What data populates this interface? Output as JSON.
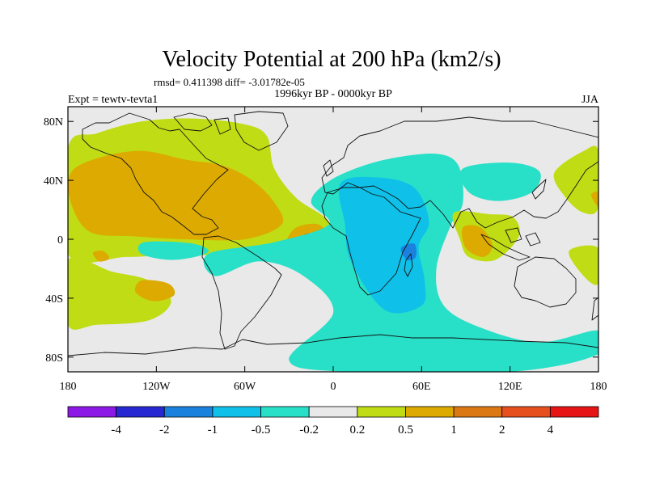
{
  "chart_data": {
    "type": "heatmap",
    "title": "Velocity Potential at 200 hPa (km2/s)",
    "stats": "rmsd= 0.411398 diff= -3.01782e-05",
    "left_label": "Expt = tewtv-tevta1",
    "center_label": "1996kyr BP - 0000kyr BP",
    "right_label": "JJA",
    "x_range": [
      -180,
      180
    ],
    "y_range": [
      -90,
      90
    ],
    "x_ticks": [
      {
        "value": -180,
        "label": "180"
      },
      {
        "value": -120,
        "label": "120W"
      },
      {
        "value": -60,
        "label": "60W"
      },
      {
        "value": 0,
        "label": "0"
      },
      {
        "value": 60,
        "label": "60E"
      },
      {
        "value": 120,
        "label": "120E"
      },
      {
        "value": 180,
        "label": "180"
      }
    ],
    "y_ticks": [
      {
        "value": 80,
        "label": "80N"
      },
      {
        "value": 40,
        "label": "40N"
      },
      {
        "value": 0,
        "label": "0"
      },
      {
        "value": -40,
        "label": "40S"
      },
      {
        "value": -80,
        "label": "80S"
      }
    ],
    "colorbar": {
      "levels": [
        -4,
        -2,
        -1,
        -0.5,
        -0.2,
        0.2,
        0.5,
        1,
        2,
        4
      ],
      "level_labels": [
        "-4",
        "-2",
        "-1",
        "-0.5",
        "-0.2",
        "0.2",
        "0.5",
        "1",
        "2",
        "4"
      ],
      "colors": [
        "#8c19e6",
        "#2828d2",
        "#1a82dc",
        "#0fc0e8",
        "#28e0c8",
        "#e9e9e9",
        "#c0dc14",
        "#dcaa00",
        "#dc7814",
        "#e6501e",
        "#e61414"
      ]
    },
    "regions": [
      {
        "name": "global-neutral",
        "level": 0,
        "points": [
          [
            -180,
            90
          ],
          [
            180,
            90
          ],
          [
            180,
            -90
          ],
          [
            -180,
            -90
          ]
        ]
      },
      {
        "name": "pacific-atlantic-positive",
        "level": 1,
        "points": [
          [
            -180,
            62
          ],
          [
            -160,
            72
          ],
          [
            -130,
            80
          ],
          [
            -95,
            82
          ],
          [
            -60,
            78
          ],
          [
            -45,
            70
          ],
          [
            -40,
            48
          ],
          [
            -25,
            28
          ],
          [
            -3,
            12
          ],
          [
            -8,
            -3
          ],
          [
            -35,
            -10
          ],
          [
            -70,
            -12
          ],
          [
            -100,
            -10
          ],
          [
            -140,
            -12
          ],
          [
            -180,
            -10
          ]
        ]
      },
      {
        "name": "s-pacific-positive",
        "level": 1,
        "points": [
          [
            -180,
            -14
          ],
          [
            -150,
            -22
          ],
          [
            -125,
            -28
          ],
          [
            -110,
            -42
          ],
          [
            -125,
            -55
          ],
          [
            -160,
            -58
          ],
          [
            -180,
            -58
          ]
        ]
      },
      {
        "name": "n-pacific-atlantic-orange",
        "level": 2,
        "points": [
          [
            -178,
            45
          ],
          [
            -160,
            55
          ],
          [
            -130,
            60
          ],
          [
            -100,
            54
          ],
          [
            -75,
            50
          ],
          [
            -55,
            40
          ],
          [
            -40,
            25
          ],
          [
            -35,
            10
          ],
          [
            -60,
            0
          ],
          [
            -100,
            0
          ],
          [
            -135,
            2
          ],
          [
            -165,
            5
          ],
          [
            -178,
            25
          ]
        ]
      },
      {
        "name": "atlantic-tropical-orange",
        "level": 2,
        "points": [
          [
            -32,
            -2
          ],
          [
            -25,
            8
          ],
          [
            -10,
            10
          ],
          [
            -3,
            0
          ],
          [
            -15,
            -6
          ],
          [
            -28,
            -6
          ]
        ]
      },
      {
        "name": "atlantic-dark-core",
        "level": 3,
        "points": [
          [
            -25,
            -1
          ],
          [
            -18,
            4
          ],
          [
            -10,
            2
          ],
          [
            -12,
            -3
          ],
          [
            -22,
            -3
          ]
        ]
      },
      {
        "name": "pacific-small-orange",
        "level": 2,
        "points": [
          [
            -163,
            -9
          ],
          [
            -156,
            -8
          ],
          [
            -152,
            -13
          ],
          [
            -159,
            -15
          ]
        ]
      },
      {
        "name": "s-pacific-orange",
        "level": 2,
        "points": [
          [
            -130,
            -28
          ],
          [
            -112,
            -30
          ],
          [
            -108,
            -38
          ],
          [
            -122,
            -42
          ],
          [
            -134,
            -36
          ]
        ]
      },
      {
        "name": "africa-indian-negative",
        "level": -1,
        "points": [
          [
            -5,
            38
          ],
          [
            15,
            48
          ],
          [
            40,
            55
          ],
          [
            70,
            58
          ],
          [
            85,
            50
          ],
          [
            88,
            25
          ],
          [
            80,
            10
          ],
          [
            70,
            -20
          ],
          [
            75,
            -45
          ],
          [
            100,
            -60
          ],
          [
            140,
            -70
          ],
          [
            180,
            -62
          ],
          [
            180,
            -78
          ],
          [
            120,
            -90
          ],
          [
            10,
            -90
          ],
          [
            -30,
            -82
          ],
          [
            0,
            -50
          ],
          [
            -20,
            -25
          ],
          [
            -50,
            -15
          ],
          [
            -80,
            -25
          ],
          [
            -85,
            -10
          ],
          [
            -40,
            -2
          ],
          [
            -3,
            10
          ],
          [
            -15,
            25
          ]
        ]
      },
      {
        "name": "africa-blue-core",
        "level": -2,
        "points": [
          [
            5,
            38
          ],
          [
            30,
            42
          ],
          [
            55,
            35
          ],
          [
            65,
            12
          ],
          [
            58,
            -5
          ],
          [
            62,
            -28
          ],
          [
            60,
            -45
          ],
          [
            35,
            -48
          ],
          [
            12,
            -15
          ],
          [
            8,
            10
          ]
        ]
      },
      {
        "name": "east-africa-dark",
        "level": -3,
        "points": [
          [
            46,
            -6
          ],
          [
            55,
            -3
          ],
          [
            56,
            -12
          ],
          [
            50,
            -14
          ]
        ]
      },
      {
        "name": "china-negative",
        "level": -1,
        "points": [
          [
            88,
            48
          ],
          [
            120,
            52
          ],
          [
            140,
            46
          ],
          [
            135,
            32
          ],
          [
            112,
            26
          ],
          [
            92,
            32
          ]
        ]
      },
      {
        "name": "sea-positive",
        "level": 1,
        "points": [
          [
            82,
            18
          ],
          [
            106,
            17
          ],
          [
            122,
            15
          ],
          [
            126,
            2
          ],
          [
            110,
            -14
          ],
          [
            92,
            -12
          ],
          [
            86,
            0
          ]
        ]
      },
      {
        "name": "sea-orange",
        "level": 2,
        "points": [
          [
            88,
            8
          ],
          [
            100,
            8
          ],
          [
            108,
            -4
          ],
          [
            102,
            -12
          ],
          [
            90,
            -6
          ]
        ]
      },
      {
        "name": "w-pacific-positive",
        "level": 1,
        "points": [
          [
            150,
            45
          ],
          [
            170,
            60
          ],
          [
            180,
            60
          ],
          [
            180,
            22
          ],
          [
            170,
            18
          ],
          [
            158,
            28
          ]
        ]
      },
      {
        "name": "w-pacific-orange",
        "level": 2,
        "points": [
          [
            175,
            30
          ],
          [
            180,
            32
          ],
          [
            180,
            22
          ]
        ]
      },
      {
        "name": "sw-pacific-positive",
        "level": 1,
        "points": [
          [
            160,
            -8
          ],
          [
            180,
            -6
          ],
          [
            180,
            -30
          ],
          [
            170,
            -25
          ]
        ]
      },
      {
        "name": "e-pacific-negative",
        "level": -1,
        "points": [
          [
            -128,
            -2
          ],
          [
            -95,
            -3
          ],
          [
            -85,
            -9
          ],
          [
            -108,
            -14
          ],
          [
            -130,
            -10
          ]
        ]
      }
    ]
  }
}
